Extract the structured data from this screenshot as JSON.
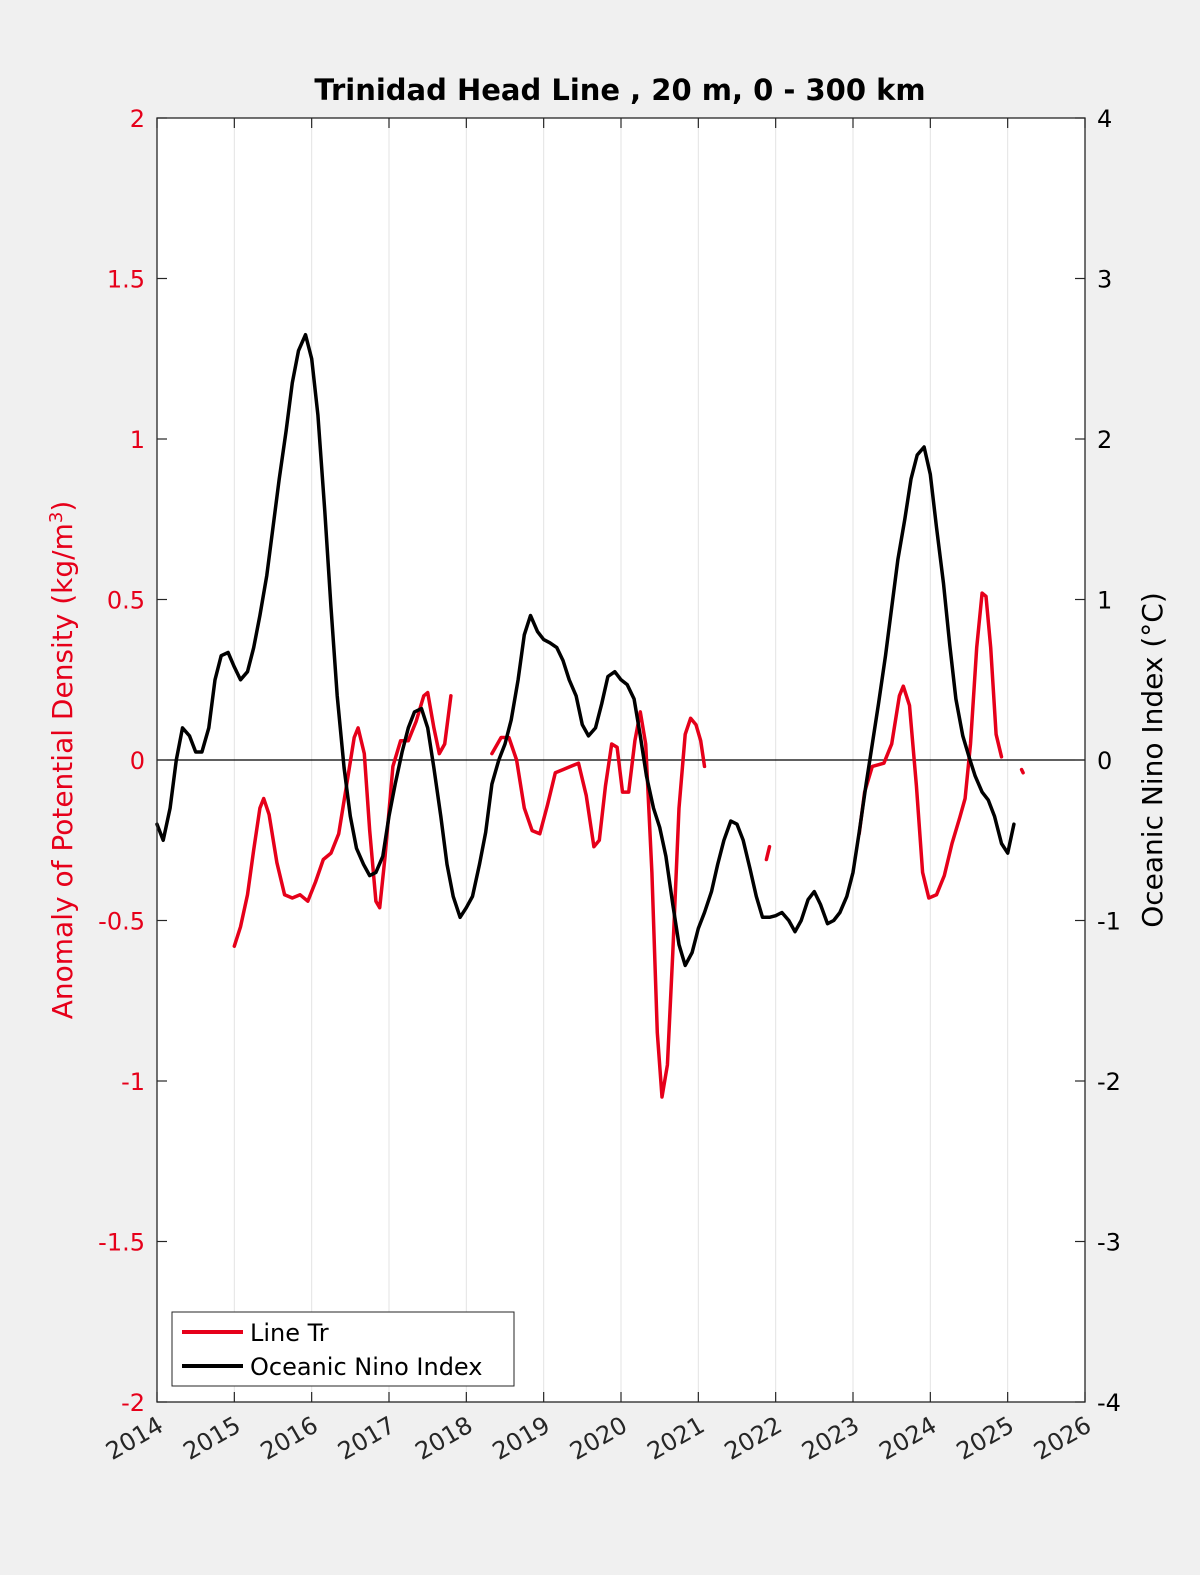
{
  "chart_data": {
    "type": "line",
    "title": "Trinidad Head Line , 20 m, 0 - 300 km",
    "ylabel_left": "Anomaly of Potential Density (kg/m",
    "ylabel_left_sup": "3",
    "ylabel_left_close": ")",
    "ylabel_right": "Oceanic Nino Index (°C)",
    "xlim": [
      2014,
      2026
    ],
    "ylim_left": [
      -2,
      2
    ],
    "ylim_right": [
      -4,
      4
    ],
    "xticks": [
      "2014",
      "2015",
      "2016",
      "2017",
      "2018",
      "2019",
      "2020",
      "2021",
      "2022",
      "2023",
      "2024",
      "2025",
      "2026"
    ],
    "yticks_left": [
      "2",
      "1.5",
      "1",
      "0.5",
      "0",
      "-0.5",
      "-1",
      "-1.5",
      "-2"
    ],
    "yticks_right": [
      "4",
      "3",
      "2",
      "1",
      "0",
      "-1",
      "-2",
      "-3",
      "-4"
    ],
    "grid": "vertical",
    "legend_position": "bottom-left",
    "colors": {
      "line_tr": "#e6001a",
      "oni": "#000000",
      "left_axis": "#e6001a",
      "right_axis": "#000000"
    },
    "series": [
      {
        "name": "Line Tr",
        "axis": "left",
        "segments": [
          [
            [
              2015.0,
              -0.58
            ],
            [
              2015.08,
              -0.52
            ],
            [
              2015.17,
              -0.42
            ],
            [
              2015.25,
              -0.28
            ],
            [
              2015.33,
              -0.15
            ],
            [
              2015.38,
              -0.12
            ],
            [
              2015.45,
              -0.17
            ],
            [
              2015.55,
              -0.32
            ],
            [
              2015.65,
              -0.42
            ],
            [
              2015.75,
              -0.43
            ],
            [
              2015.85,
              -0.42
            ],
            [
              2015.95,
              -0.44
            ],
            [
              2016.05,
              -0.38
            ],
            [
              2016.15,
              -0.31
            ],
            [
              2016.25,
              -0.29
            ],
            [
              2016.35,
              -0.23
            ],
            [
              2016.45,
              -0.08
            ],
            [
              2016.55,
              0.07
            ],
            [
              2016.6,
              0.1
            ],
            [
              2016.68,
              0.02
            ],
            [
              2016.75,
              -0.22
            ],
            [
              2016.83,
              -0.44
            ],
            [
              2016.88,
              -0.46
            ],
            [
              2016.95,
              -0.3
            ],
            [
              2017.05,
              -0.02
            ],
            [
              2017.15,
              0.06
            ],
            [
              2017.25,
              0.06
            ],
            [
              2017.35,
              0.12
            ],
            [
              2017.45,
              0.2
            ],
            [
              2017.5,
              0.21
            ],
            [
              2017.58,
              0.1
            ],
            [
              2017.65,
              0.02
            ],
            [
              2017.72,
              0.05
            ],
            [
              2017.8,
              0.2
            ]
          ],
          [
            [
              2018.33,
              0.02
            ],
            [
              2018.45,
              0.07
            ],
            [
              2018.55,
              0.07
            ],
            [
              2018.65,
              0.0
            ],
            [
              2018.75,
              -0.15
            ],
            [
              2018.85,
              -0.22
            ],
            [
              2018.95,
              -0.23
            ],
            [
              2019.05,
              -0.14
            ],
            [
              2019.15,
              -0.04
            ],
            [
              2019.25,
              -0.03
            ],
            [
              2019.35,
              -0.02
            ],
            [
              2019.45,
              -0.01
            ],
            [
              2019.55,
              -0.11
            ],
            [
              2019.65,
              -0.27
            ],
            [
              2019.72,
              -0.25
            ],
            [
              2019.8,
              -0.08
            ],
            [
              2019.88,
              0.05
            ],
            [
              2019.95,
              0.04
            ],
            [
              2020.02,
              -0.1
            ],
            [
              2020.1,
              -0.1
            ],
            [
              2020.18,
              0.06
            ],
            [
              2020.25,
              0.15
            ],
            [
              2020.32,
              0.05
            ],
            [
              2020.4,
              -0.35
            ],
            [
              2020.47,
              -0.85
            ],
            [
              2020.53,
              -1.05
            ],
            [
              2020.6,
              -0.95
            ],
            [
              2020.67,
              -0.6
            ],
            [
              2020.75,
              -0.15
            ],
            [
              2020.83,
              0.08
            ],
            [
              2020.9,
              0.13
            ],
            [
              2020.97,
              0.11
            ],
            [
              2021.03,
              0.06
            ],
            [
              2021.08,
              -0.02
            ]
          ],
          [
            [
              2021.88,
              -0.31
            ],
            [
              2021.92,
              -0.27
            ]
          ],
          [
            [
              2023.08,
              -0.23
            ],
            [
              2023.15,
              -0.1
            ],
            [
              2023.25,
              -0.02
            ],
            [
              2023.4,
              -0.01
            ],
            [
              2023.5,
              0.05
            ],
            [
              2023.6,
              0.2
            ],
            [
              2023.65,
              0.23
            ],
            [
              2023.73,
              0.17
            ],
            [
              2023.82,
              -0.08
            ],
            [
              2023.9,
              -0.35
            ],
            [
              2023.98,
              -0.43
            ],
            [
              2024.08,
              -0.42
            ],
            [
              2024.18,
              -0.36
            ],
            [
              2024.28,
              -0.26
            ],
            [
              2024.38,
              -0.18
            ],
            [
              2024.45,
              -0.12
            ],
            [
              2024.52,
              0.05
            ],
            [
              2024.6,
              0.35
            ],
            [
              2024.67,
              0.52
            ],
            [
              2024.72,
              0.51
            ],
            [
              2024.78,
              0.35
            ],
            [
              2024.85,
              0.08
            ],
            [
              2024.92,
              0.01
            ]
          ],
          [
            [
              2025.18,
              -0.03
            ],
            [
              2025.2,
              -0.04
            ]
          ]
        ]
      },
      {
        "name": "Oceanic Nino Index",
        "axis": "right",
        "segments": [
          [
            [
              2014.0,
              -0.4
            ],
            [
              2014.08,
              -0.5
            ],
            [
              2014.17,
              -0.3
            ],
            [
              2014.25,
              0.0
            ],
            [
              2014.33,
              0.2
            ],
            [
              2014.42,
              0.15
            ],
            [
              2014.5,
              0.05
            ],
            [
              2014.58,
              0.05
            ],
            [
              2014.67,
              0.2
            ],
            [
              2014.75,
              0.5
            ],
            [
              2014.83,
              0.65
            ],
            [
              2014.92,
              0.67
            ],
            [
              2015.0,
              0.58
            ],
            [
              2015.08,
              0.5
            ],
            [
              2015.17,
              0.55
            ],
            [
              2015.25,
              0.7
            ],
            [
              2015.33,
              0.9
            ],
            [
              2015.42,
              1.15
            ],
            [
              2015.5,
              1.45
            ],
            [
              2015.58,
              1.75
            ],
            [
              2015.67,
              2.05
            ],
            [
              2015.75,
              2.35
            ],
            [
              2015.83,
              2.55
            ],
            [
              2015.92,
              2.65
            ],
            [
              2016.0,
              2.5
            ],
            [
              2016.08,
              2.15
            ],
            [
              2016.17,
              1.55
            ],
            [
              2016.25,
              0.95
            ],
            [
              2016.33,
              0.4
            ],
            [
              2016.42,
              -0.05
            ],
            [
              2016.5,
              -0.35
            ],
            [
              2016.58,
              -0.55
            ],
            [
              2016.67,
              -0.65
            ],
            [
              2016.75,
              -0.72
            ],
            [
              2016.83,
              -0.7
            ],
            [
              2016.92,
              -0.6
            ],
            [
              2017.0,
              -0.35
            ],
            [
              2017.08,
              -0.15
            ],
            [
              2017.17,
              0.05
            ],
            [
              2017.25,
              0.2
            ],
            [
              2017.33,
              0.3
            ],
            [
              2017.42,
              0.32
            ],
            [
              2017.5,
              0.2
            ],
            [
              2017.58,
              -0.05
            ],
            [
              2017.67,
              -0.35
            ],
            [
              2017.75,
              -0.65
            ],
            [
              2017.83,
              -0.85
            ],
            [
              2017.92,
              -0.98
            ],
            [
              2018.0,
              -0.92
            ],
            [
              2018.08,
              -0.85
            ],
            [
              2018.17,
              -0.65
            ],
            [
              2018.25,
              -0.45
            ],
            [
              2018.33,
              -0.15
            ],
            [
              2018.42,
              0.0
            ],
            [
              2018.5,
              0.1
            ],
            [
              2018.58,
              0.25
            ],
            [
              2018.67,
              0.5
            ],
            [
              2018.75,
              0.78
            ],
            [
              2018.83,
              0.9
            ],
            [
              2018.92,
              0.8
            ],
            [
              2019.0,
              0.75
            ],
            [
              2019.08,
              0.73
            ],
            [
              2019.17,
              0.7
            ],
            [
              2019.25,
              0.62
            ],
            [
              2019.33,
              0.5
            ],
            [
              2019.42,
              0.4
            ],
            [
              2019.5,
              0.22
            ],
            [
              2019.58,
              0.15
            ],
            [
              2019.67,
              0.2
            ],
            [
              2019.75,
              0.35
            ],
            [
              2019.83,
              0.52
            ],
            [
              2019.92,
              0.55
            ],
            [
              2020.0,
              0.5
            ],
            [
              2020.08,
              0.47
            ],
            [
              2020.17,
              0.38
            ],
            [
              2020.25,
              0.15
            ],
            [
              2020.33,
              -0.1
            ],
            [
              2020.42,
              -0.3
            ],
            [
              2020.5,
              -0.42
            ],
            [
              2020.58,
              -0.6
            ],
            [
              2020.67,
              -0.9
            ],
            [
              2020.75,
              -1.15
            ],
            [
              2020.83,
              -1.28
            ],
            [
              2020.92,
              -1.2
            ],
            [
              2021.0,
              -1.05
            ],
            [
              2021.08,
              -0.95
            ],
            [
              2021.17,
              -0.82
            ],
            [
              2021.25,
              -0.65
            ],
            [
              2021.33,
              -0.5
            ],
            [
              2021.42,
              -0.38
            ],
            [
              2021.5,
              -0.4
            ],
            [
              2021.58,
              -0.5
            ],
            [
              2021.67,
              -0.68
            ],
            [
              2021.75,
              -0.85
            ],
            [
              2021.83,
              -0.98
            ],
            [
              2021.92,
              -0.98
            ],
            [
              2022.0,
              -0.97
            ],
            [
              2022.08,
              -0.95
            ],
            [
              2022.17,
              -1.0
            ],
            [
              2022.25,
              -1.07
            ],
            [
              2022.33,
              -1.0
            ],
            [
              2022.42,
              -0.87
            ],
            [
              2022.5,
              -0.82
            ],
            [
              2022.58,
              -0.9
            ],
            [
              2022.67,
              -1.02
            ],
            [
              2022.75,
              -1.0
            ],
            [
              2022.83,
              -0.95
            ],
            [
              2022.92,
              -0.85
            ],
            [
              2023.0,
              -0.7
            ],
            [
              2023.08,
              -0.45
            ],
            [
              2023.17,
              -0.15
            ],
            [
              2023.25,
              0.1
            ],
            [
              2023.33,
              0.35
            ],
            [
              2023.42,
              0.65
            ],
            [
              2023.5,
              0.95
            ],
            [
              2023.58,
              1.25
            ],
            [
              2023.67,
              1.5
            ],
            [
              2023.75,
              1.75
            ],
            [
              2023.83,
              1.9
            ],
            [
              2023.92,
              1.95
            ],
            [
              2024.0,
              1.78
            ],
            [
              2024.08,
              1.45
            ],
            [
              2024.17,
              1.1
            ],
            [
              2024.25,
              0.72
            ],
            [
              2024.33,
              0.38
            ],
            [
              2024.42,
              0.15
            ],
            [
              2024.5,
              0.02
            ],
            [
              2024.58,
              -0.1
            ],
            [
              2024.67,
              -0.2
            ],
            [
              2024.75,
              -0.25
            ],
            [
              2024.83,
              -0.35
            ],
            [
              2024.92,
              -0.52
            ],
            [
              2025.0,
              -0.58
            ],
            [
              2025.08,
              -0.4
            ]
          ]
        ]
      }
    ]
  }
}
